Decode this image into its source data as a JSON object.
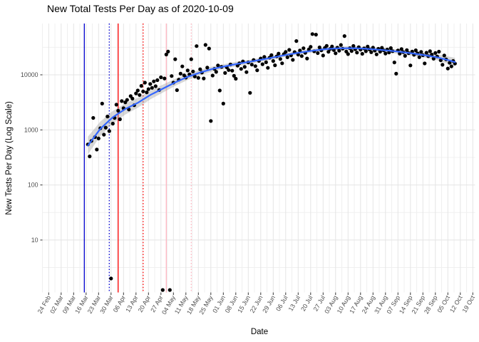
{
  "title": "New Total Tests Per Day as of 2020-10-09",
  "chart_data": {
    "type": "scatter",
    "title": "New Total Tests Per Day as of 2020-10-09",
    "xlabel": "Date",
    "ylabel": "New Tests Per Day (Log Scale)",
    "y_scale": "log10",
    "ylim": [
      1,
      85000
    ],
    "grid": "on",
    "legend": "none",
    "y_ticks": [
      {
        "label": "10",
        "value": 10
      },
      {
        "label": "100",
        "value": 100
      },
      {
        "label": "1000",
        "value": 1000
      },
      {
        "label": "10000",
        "value": 10000
      }
    ],
    "y_minor_ticks": [
      3.162,
      31.62,
      316.2,
      3162,
      31623
    ],
    "x_origin_date": "2020-02-24",
    "x_tick_labels": [
      "24 Feb",
      "02 Mar",
      "09 Mar",
      "16 Mar",
      "23 Mar",
      "30 Mar",
      "06 Apr",
      "13 Apr",
      "20 Apr",
      "27 Apr",
      "04 May",
      "11 May",
      "18 May",
      "25 May",
      "01 Jun",
      "08 Jun",
      "15 Jun",
      "22 Jun",
      "29 Jun",
      "06 Jul",
      "13 Jul",
      "20 Jul",
      "27 Jul",
      "03 Aug",
      "10 Aug",
      "17 Aug",
      "24 Aug",
      "31 Aug",
      "07 Sep",
      "14 Sep",
      "21 Sep",
      "28 Sep",
      "05 Oct",
      "12 Oct",
      "19 Oct"
    ],
    "points": {
      "start_date": "2020-03-17",
      "values": [
        545,
        330,
        630,
        1650,
        740,
        440,
        700,
        1070,
        3000,
        820,
        1100,
        1750,
        950,
        2,
        1300,
        1650,
        2870,
        2230,
        1560,
        3330,
        2470,
        3170,
        3500,
        2350,
        4100,
        3700,
        2800,
        4600,
        5200,
        4300,
        6300,
        5000,
        7200,
        4800,
        5500,
        6800,
        5800,
        7600,
        6200,
        8000,
        5300,
        9000,
        1,
        8600,
        23400,
        26400,
        1,
        9500,
        7200,
        19200,
        5270,
        8150,
        10500,
        14200,
        9800,
        8900,
        12000,
        10200,
        19200,
        11500,
        9300,
        33200,
        8800,
        12600,
        11000,
        8600,
        34900,
        13500,
        30000,
        1450,
        9700,
        12800,
        11300,
        14800,
        5200,
        13900,
        3000,
        10800,
        13600,
        12200,
        15400,
        11900,
        9600,
        8500,
        14700,
        16200,
        12800,
        17500,
        13900,
        11200,
        16800,
        4700,
        15300,
        18600,
        14400,
        12100,
        17900,
        19800,
        15600,
        21200,
        16900,
        13400,
        20500,
        22800,
        17800,
        14900,
        21600,
        24300,
        19400,
        16200,
        23700,
        26100,
        20800,
        28400,
        22500,
        18700,
        25900,
        41000,
        23200,
        27600,
        21900,
        30400,
        25100,
        19800,
        28900,
        32200,
        55000,
        26700,
        53700,
        24800,
        31500,
        27900,
        22400,
        30800,
        33600,
        26200,
        29500,
        32700,
        28100,
        24600,
        31200,
        27400,
        34800,
        29800,
        50500,
        26500,
        23800,
        30500,
        27000,
        33400,
        29100,
        25300,
        31800,
        28600,
        24100,
        30200,
        26800,
        32500,
        28900,
        25700,
        31100,
        27500,
        23500,
        29700,
        26300,
        30900,
        27800,
        24400,
        28800,
        25400,
        30600,
        26900,
        16800,
        10500,
        27700,
        24200,
        29300,
        25800,
        22100,
        28100,
        24700,
        14800,
        26400,
        23100,
        27900,
        24500,
        20900,
        26100,
        22700,
        16100,
        25200,
        21800,
        26800,
        23400,
        19600,
        24900,
        21500,
        26300,
        18300,
        15200,
        22400,
        19100,
        13000,
        16500,
        14200,
        17800,
        16000
      ]
    },
    "smooth": {
      "name": "loess",
      "dates": [
        "2020-03-17",
        "2020-03-24",
        "2020-03-31",
        "2020-04-07",
        "2020-04-14",
        "2020-04-21",
        "2020-04-28",
        "2020-05-05",
        "2020-05-12",
        "2020-05-19",
        "2020-05-26",
        "2020-06-02",
        "2020-06-09",
        "2020-06-16",
        "2020-06-23",
        "2020-06-30",
        "2020-07-07",
        "2020-07-14",
        "2020-07-21",
        "2020-07-28",
        "2020-08-04",
        "2020-08-11",
        "2020-08-18",
        "2020-08-25",
        "2020-09-01",
        "2020-09-08",
        "2020-09-15",
        "2020-09-22",
        "2020-09-29",
        "2020-10-06",
        "2020-10-09"
      ],
      "values": [
        520,
        1050,
        1700,
        2400,
        3100,
        4300,
        5600,
        7300,
        9200,
        11000,
        12800,
        14300,
        15800,
        17300,
        19000,
        21000,
        23200,
        25400,
        27400,
        29200,
        30300,
        30500,
        30000,
        29000,
        27700,
        26200,
        24500,
        22700,
        20800,
        18200,
        17000
      ],
      "ribbon_factor": [
        1.45,
        1.35,
        1.3,
        1.26,
        1.23,
        1.2,
        1.18,
        1.16,
        1.14,
        1.12,
        1.11,
        1.1,
        1.1,
        1.09,
        1.09,
        1.08,
        1.08,
        1.08,
        1.08,
        1.08,
        1.08,
        1.08,
        1.08,
        1.09,
        1.09,
        1.1,
        1.1,
        1.11,
        1.13,
        1.17,
        1.2
      ]
    },
    "vlines": [
      {
        "date": "2020-03-15",
        "style": "solid",
        "color": "#0000CD"
      },
      {
        "date": "2020-03-29",
        "style": "dotted",
        "color": "#0000CD"
      },
      {
        "date": "2020-04-03",
        "style": "solid",
        "color": "#FF0000"
      },
      {
        "date": "2020-04-17",
        "style": "dotted",
        "color": "#FF0000"
      },
      {
        "date": "2020-04-30",
        "style": "solid",
        "color": "#FFB6C1"
      },
      {
        "date": "2020-05-14",
        "style": "dotted",
        "color": "#FFB6C1"
      }
    ],
    "colors": {
      "point": "#000000",
      "smooth_line": "#3366FF",
      "ribbon": "#999999",
      "grid_major": "#e4e4e4",
      "grid_minor": "#f0f0f0",
      "tick_text": "#4d4d4d",
      "background": "#ffffff"
    }
  }
}
